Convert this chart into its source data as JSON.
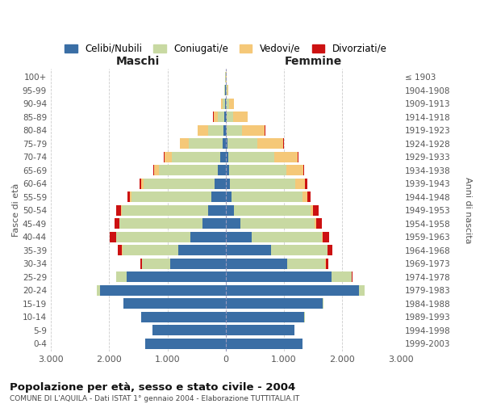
{
  "age_groups": [
    "0-4",
    "5-9",
    "10-14",
    "15-19",
    "20-24",
    "25-29",
    "30-34",
    "35-39",
    "40-44",
    "45-49",
    "50-54",
    "55-59",
    "60-64",
    "65-69",
    "70-74",
    "75-79",
    "80-84",
    "85-89",
    "90-94",
    "95-99",
    "100+"
  ],
  "birth_years": [
    "1999-2003",
    "1994-1998",
    "1989-1993",
    "1984-1988",
    "1979-1983",
    "1974-1978",
    "1969-1973",
    "1964-1968",
    "1959-1963",
    "1954-1958",
    "1949-1953",
    "1944-1948",
    "1939-1943",
    "1934-1938",
    "1929-1933",
    "1924-1928",
    "1919-1923",
    "1914-1918",
    "1909-1913",
    "1904-1908",
    "≤ 1903"
  ],
  "males": {
    "celibi": [
      1380,
      1250,
      1450,
      1750,
      2150,
      1700,
      950,
      820,
      600,
      400,
      300,
      240,
      190,
      130,
      90,
      55,
      35,
      20,
      12,
      8,
      4
    ],
    "coniugati": [
      0,
      0,
      0,
      5,
      55,
      175,
      480,
      950,
      1280,
      1420,
      1480,
      1380,
      1220,
      1020,
      840,
      580,
      260,
      110,
      45,
      15,
      5
    ],
    "vedovi": [
      0,
      0,
      0,
      0,
      0,
      0,
      5,
      5,
      5,
      8,
      12,
      20,
      40,
      75,
      120,
      145,
      180,
      80,
      25,
      6,
      2
    ],
    "divorziati": [
      0,
      0,
      0,
      0,
      5,
      10,
      30,
      80,
      100,
      80,
      80,
      50,
      30,
      15,
      10,
      5,
      5,
      5,
      0,
      0,
      0
    ]
  },
  "females": {
    "nubili": [
      1320,
      1180,
      1350,
      1660,
      2280,
      1820,
      1050,
      780,
      450,
      250,
      140,
      95,
      75,
      55,
      45,
      30,
      18,
      10,
      8,
      6,
      4
    ],
    "coniugate": [
      0,
      0,
      5,
      20,
      100,
      340,
      660,
      960,
      1200,
      1280,
      1320,
      1220,
      1120,
      980,
      790,
      510,
      265,
      120,
      55,
      18,
      5
    ],
    "vedove": [
      0,
      0,
      0,
      0,
      0,
      5,
      5,
      5,
      10,
      20,
      40,
      85,
      160,
      290,
      400,
      450,
      390,
      240,
      75,
      22,
      5
    ],
    "divorziate": [
      0,
      0,
      0,
      0,
      5,
      10,
      40,
      80,
      110,
      100,
      90,
      60,
      40,
      20,
      15,
      10,
      5,
      5,
      0,
      0,
      0
    ]
  },
  "colors": {
    "celibi_nubili": "#3a6ea5",
    "coniugati": "#c8d9a2",
    "vedovi": "#f5c878",
    "divorziati": "#cc1111"
  },
  "xlim": 3000,
  "title": "Popolazione per età, sesso e stato civile - 2004",
  "subtitle": "COMUNE DI L'AQUILA - Dati ISTAT 1° gennaio 2004 - Elaborazione TUTTITALIA.IT",
  "ylabel_left": "Fasce di età",
  "ylabel_right": "Anni di nascita",
  "xlabel_left": "Maschi",
  "xlabel_right": "Femmine",
  "legend_labels": [
    "Celibi/Nubili",
    "Coniugati/e",
    "Vedovi/e",
    "Divorziati/e"
  ],
  "background_color": "#ffffff",
  "grid_color": "#cccccc"
}
